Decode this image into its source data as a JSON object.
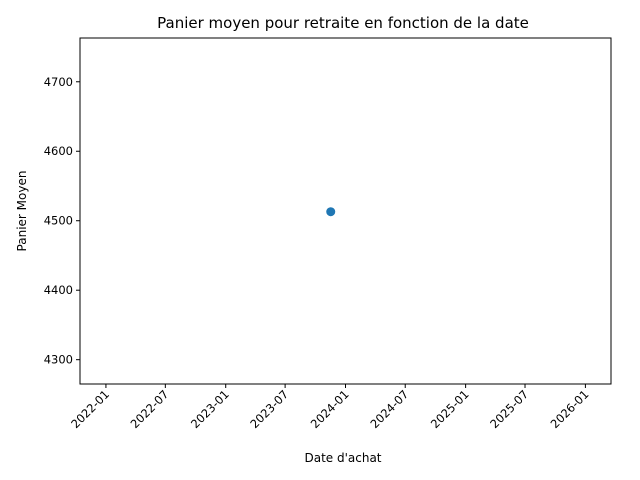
{
  "chart_data": {
    "type": "scatter",
    "title": "Panier moyen pour retraite en fonction de la date",
    "xlabel": "Date d'achat",
    "ylabel": "Panier Moyen",
    "x_ticks": [
      "2022-01",
      "2022-07",
      "2023-01",
      "2023-07",
      "2024-01",
      "2024-07",
      "2025-01",
      "2025-07",
      "2026-01"
    ],
    "y_ticks": [
      4300,
      4400,
      4500,
      4600,
      4700
    ],
    "xlim": [
      "2021-10-14",
      "2026-03-20"
    ],
    "ylim": [
      4265,
      4763
    ],
    "points": [
      {
        "x": "2023-11-17",
        "y": 4513
      }
    ],
    "marker_color": "#1f77b4",
    "grid": false,
    "legend": false
  }
}
